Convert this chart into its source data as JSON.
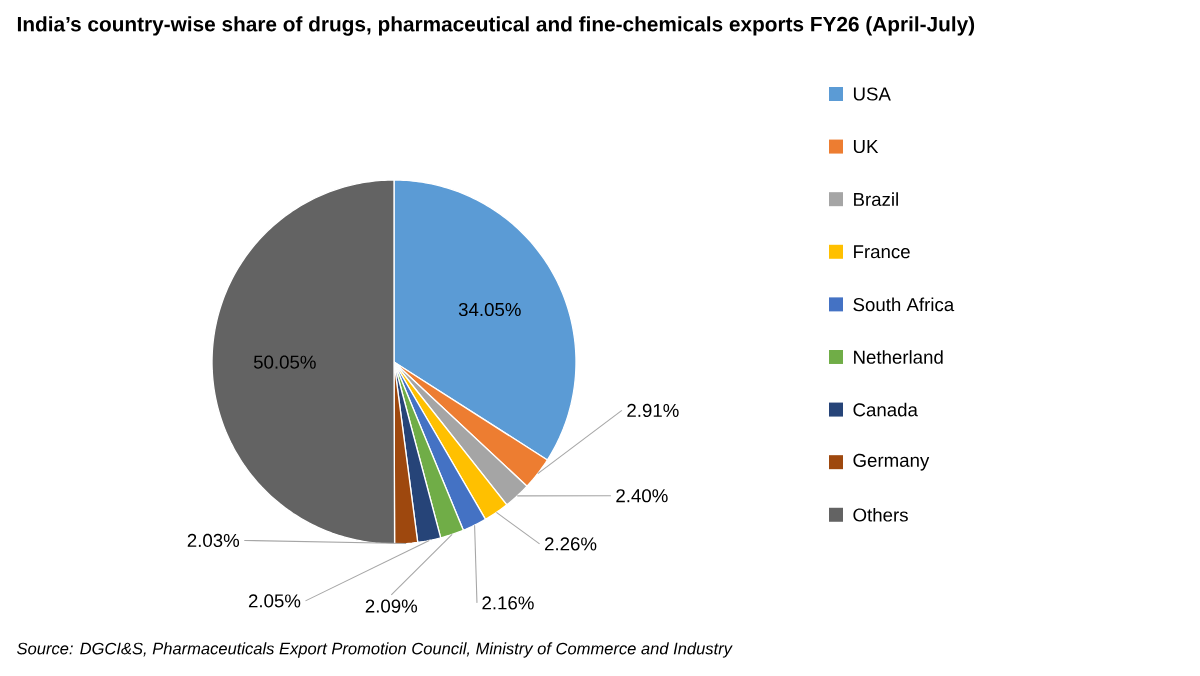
{
  "chart_data": {
    "type": "pie",
    "title": "India’s country-wise share of drugs, pharmaceutical and fine-chemicals exports FY26 (April-July)",
    "categories": [
      "USA",
      "UK",
      "Brazil",
      "France",
      "South Africa",
      "Netherland",
      "Canada",
      "Germany",
      "Others"
    ],
    "values": [
      34.05,
      2.91,
      2.4,
      2.26,
      2.16,
      2.09,
      2.05,
      2.03,
      50.05
    ],
    "colors": [
      "#5b9bd5",
      "#ed7d31",
      "#a5a5a5",
      "#ffc000",
      "#4472c4",
      "#70ad47",
      "#264478",
      "#9e480e",
      "#636363"
    ],
    "value_labels": [
      "34.05%",
      "2.91%",
      "2.40%",
      "2.26%",
      "2.16%",
      "2.09%",
      "2.05%",
      "2.03%",
      "50.05%"
    ],
    "legend": "right",
    "annotations": [
      "Source: DGCI&S, Pharmaceuticals Export Promotion Council, Ministry of Commerce and Industry"
    ]
  }
}
